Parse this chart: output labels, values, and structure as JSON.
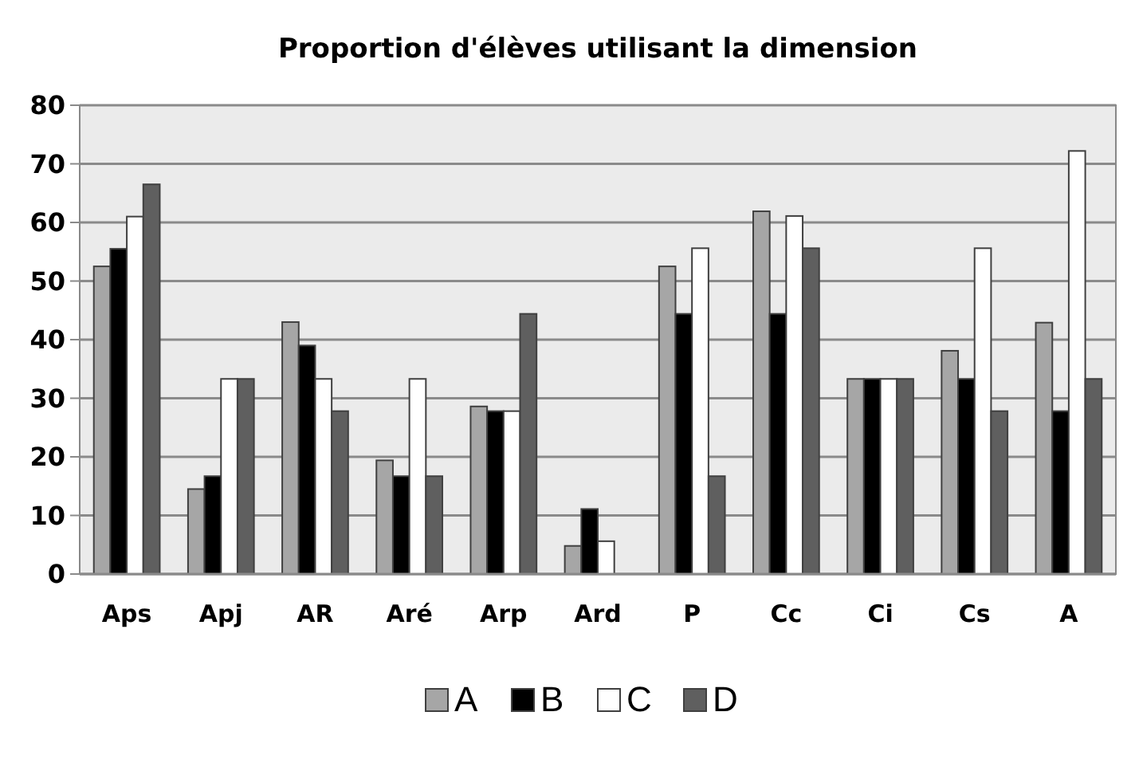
{
  "chart_data": {
    "type": "bar",
    "title": "Proportion d'élèves utilisant la dimension",
    "categories": [
      "Aps",
      "Apj",
      "AR",
      "Aré",
      "Arp",
      "Ard",
      "P",
      "Cc",
      "Ci",
      "Cs",
      "A"
    ],
    "series": [
      {
        "name": "A",
        "color": "#a6a6a6",
        "values": [
          52.5,
          14.5,
          43,
          19.4,
          28.6,
          4.8,
          52.5,
          61.9,
          33.3,
          38.1,
          42.9
        ]
      },
      {
        "name": "B",
        "color": "#000000",
        "values": [
          55.5,
          16.7,
          39,
          16.7,
          27.8,
          11.1,
          44.4,
          44.4,
          33.3,
          33.3,
          27.8
        ]
      },
      {
        "name": "C",
        "color": "#ffffff",
        "values": [
          61,
          33.3,
          33.3,
          33.3,
          27.8,
          5.6,
          55.6,
          61.1,
          33.3,
          55.6,
          72.2
        ]
      },
      {
        "name": "D",
        "color": "#5f5f5f",
        "values": [
          66.5,
          33.3,
          27.8,
          16.7,
          44.4,
          0,
          16.7,
          55.6,
          33.3,
          27.8,
          33.3
        ]
      }
    ],
    "ylim": [
      0,
      80
    ],
    "yticks": [
      0,
      10,
      20,
      30,
      40,
      50,
      60,
      70,
      80
    ],
    "grid": "y",
    "legend": "bottom"
  }
}
